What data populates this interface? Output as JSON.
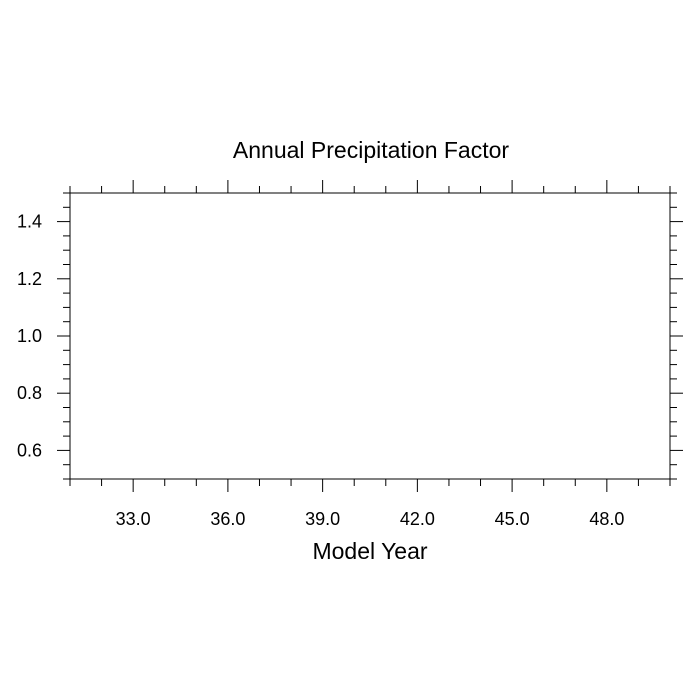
{
  "chart_data": {
    "type": "line",
    "title": "Annual Precipitation Factor",
    "xlabel": "Model Year",
    "ylabel": "",
    "xlim": [
      31.0,
      50.0
    ],
    "ylim": [
      0.5,
      1.5
    ],
    "x_major_ticks": [
      33.0,
      36.0,
      39.0,
      42.0,
      45.0,
      48.0
    ],
    "x_tick_labels": [
      "33.0",
      "36.0",
      "39.0",
      "42.0",
      "45.0",
      "48.0"
    ],
    "x_minor_step": 1.0,
    "y_major_ticks": [
      0.6,
      0.8,
      1.0,
      1.2,
      1.4
    ],
    "y_tick_labels": [
      "0.6",
      "0.8",
      "1.0",
      "1.2",
      "1.4"
    ],
    "y_minor_step": 0.05,
    "series": [],
    "grid": false
  }
}
